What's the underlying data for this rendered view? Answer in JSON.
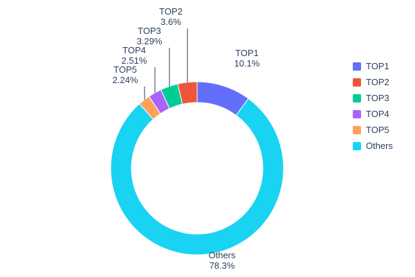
{
  "chart_data": {
    "type": "pie",
    "subtype": "donut",
    "hole": 0.76,
    "legend_position": "right",
    "grid": false,
    "title": "",
    "categories": [
      "TOP1",
      "TOP2",
      "TOP3",
      "TOP4",
      "TOP5",
      "Others"
    ],
    "values": [
      10.1,
      3.6,
      3.29,
      2.51,
      2.24,
      78.3
    ],
    "segments": [
      {
        "name": "TOP1",
        "value": 10.1,
        "pct_label": "10.1%",
        "color": "#636EFA"
      },
      {
        "name": "TOP2",
        "value": 3.6,
        "pct_label": "3.6%",
        "color": "#EF553B"
      },
      {
        "name": "TOP3",
        "value": 3.29,
        "pct_label": "3.29%",
        "color": "#00CC96"
      },
      {
        "name": "TOP4",
        "value": 2.51,
        "pct_label": "2.51%",
        "color": "#AB63FA"
      },
      {
        "name": "TOP5",
        "value": 2.24,
        "pct_label": "2.24%",
        "color": "#FFA15A"
      },
      {
        "name": "Others",
        "value": 78.3,
        "pct_label": "78.3%",
        "color": "#19D3F3"
      }
    ],
    "text_color": "#2a3f5f"
  }
}
